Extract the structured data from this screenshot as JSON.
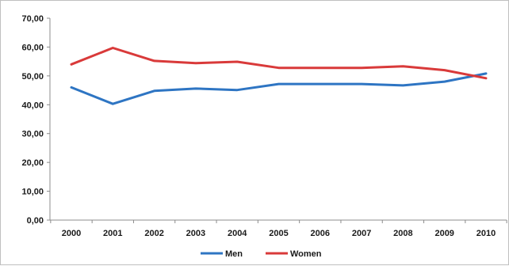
{
  "chart_data": {
    "type": "line",
    "title": "",
    "xlabel": "",
    "ylabel": "",
    "x": [
      "2000",
      "2001",
      "2002",
      "2003",
      "2004",
      "2005",
      "2006",
      "2007",
      "2008",
      "2009",
      "2010"
    ],
    "ylim": [
      0,
      70
    ],
    "yticks": [
      0,
      10,
      20,
      30,
      40,
      50,
      60,
      70
    ],
    "ytick_labels": [
      "0,00",
      "10,00",
      "20,00",
      "30,00",
      "40,00",
      "50,00",
      "60,00",
      "70,00"
    ],
    "grid": false,
    "legend_position": "bottom",
    "series": [
      {
        "name": "Men",
        "color": "#2e75c3",
        "values": [
          46.0,
          40.3,
          44.8,
          45.6,
          45.1,
          47.2,
          47.2,
          47.2,
          46.7,
          48.0,
          50.8
        ]
      },
      {
        "name": "Women",
        "color": "#d93a3a",
        "values": [
          54.0,
          59.7,
          55.2,
          54.4,
          54.9,
          52.8,
          52.8,
          52.8,
          53.3,
          52.0,
          49.2
        ]
      }
    ]
  }
}
